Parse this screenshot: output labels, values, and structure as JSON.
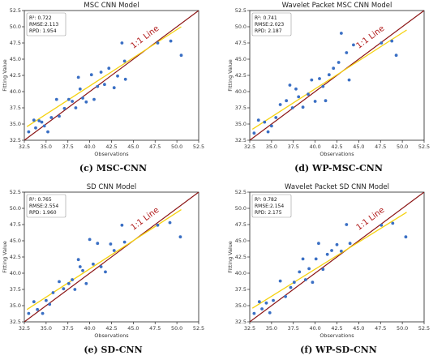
{
  "colors": {
    "point": "#3a6fc4",
    "one_to_one": "#8b1414",
    "fit": "#f5d210",
    "one_to_one_label": "#b01818"
  },
  "chart_data": [
    {
      "type": "scatter",
      "title": "MSC CNN Model",
      "caption": "(c) MSC-CNN",
      "xlabel": "Observations",
      "ylabel": "Fitting Value",
      "xlim": [
        32.5,
        52.5
      ],
      "ylim": [
        32.5,
        52.5
      ],
      "xticks": [
        "32.5",
        "35.0",
        "37.5",
        "40.0",
        "42.5",
        "45.0",
        "47.5",
        "50.0",
        "52.5"
      ],
      "yticks": [
        "32.5",
        "35.0",
        "37.5",
        "40.0",
        "42.5",
        "45.0",
        "47.5",
        "50.0",
        "52.5"
      ],
      "stats": [
        "R²: 0.722",
        "RMSE:2.113",
        "RPD: 1.954"
      ],
      "line_label": "1:1 Line",
      "fit_line": [
        [
          32.8,
          34.6
        ],
        [
          50.5,
          50.0
        ]
      ],
      "points": [
        [
          33.0,
          33.8
        ],
        [
          33.6,
          35.6
        ],
        [
          33.8,
          34.4
        ],
        [
          34.2,
          35.5
        ],
        [
          34.5,
          35.3
        ],
        [
          34.8,
          34.7
        ],
        [
          35.2,
          33.8
        ],
        [
          35.6,
          36.0
        ],
        [
          36.2,
          38.8
        ],
        [
          36.5,
          36.2
        ],
        [
          37.1,
          37.4
        ],
        [
          37.6,
          38.8
        ],
        [
          38.0,
          38.5
        ],
        [
          38.4,
          37.5
        ],
        [
          38.7,
          42.2
        ],
        [
          38.9,
          40.4
        ],
        [
          39.2,
          39.0
        ],
        [
          39.6,
          38.4
        ],
        [
          40.2,
          42.6
        ],
        [
          40.5,
          38.8
        ],
        [
          40.9,
          40.8
        ],
        [
          41.3,
          43.0
        ],
        [
          41.7,
          41.1
        ],
        [
          42.2,
          43.6
        ],
        [
          42.8,
          40.6
        ],
        [
          43.2,
          42.4
        ],
        [
          43.7,
          47.5
        ],
        [
          44.0,
          44.7
        ],
        [
          44.1,
          41.9
        ],
        [
          47.8,
          47.5
        ],
        [
          49.3,
          47.8
        ],
        [
          50.5,
          45.6
        ]
      ]
    },
    {
      "type": "scatter",
      "title": "Wavelet Packet MSC CNN Model",
      "caption": "(d) WP-MSC-CNN",
      "xlabel": "Observations",
      "ylabel": "Fitting Value",
      "xlim": [
        32.5,
        52.5
      ],
      "ylim": [
        32.5,
        52.5
      ],
      "xticks": [
        "32.5",
        "35.0",
        "37.5",
        "40.0",
        "42.5",
        "45.0",
        "47.5",
        "50.0",
        "52.5"
      ],
      "yticks": [
        "32.5",
        "35.0",
        "37.5",
        "40.0",
        "42.5",
        "45.0",
        "47.5",
        "50.0",
        "52.5"
      ],
      "stats": [
        "R²: 0.741",
        "RMSE:2.023",
        "RPD: 2.187"
      ],
      "line_label": "1:1 Line",
      "fit_line": [
        [
          32.8,
          34.2
        ],
        [
          50.5,
          49.5
        ]
      ],
      "points": [
        [
          33.0,
          33.6
        ],
        [
          33.5,
          35.6
        ],
        [
          34.2,
          35.3
        ],
        [
          34.6,
          33.8
        ],
        [
          35.0,
          34.7
        ],
        [
          35.5,
          36.0
        ],
        [
          36.0,
          38.0
        ],
        [
          36.7,
          38.6
        ],
        [
          37.1,
          41.0
        ],
        [
          37.4,
          37.5
        ],
        [
          37.8,
          40.4
        ],
        [
          38.1,
          39.2
        ],
        [
          38.6,
          37.6
        ],
        [
          39.2,
          39.6
        ],
        [
          39.6,
          41.8
        ],
        [
          40.0,
          38.5
        ],
        [
          40.5,
          42.0
        ],
        [
          40.9,
          40.8
        ],
        [
          41.2,
          38.6
        ],
        [
          41.6,
          42.6
        ],
        [
          42.1,
          43.6
        ],
        [
          42.7,
          44.5
        ],
        [
          43.0,
          49.0
        ],
        [
          43.6,
          46.0
        ],
        [
          43.9,
          41.8
        ],
        [
          44.4,
          47.2
        ],
        [
          47.6,
          47.5
        ],
        [
          48.8,
          47.8
        ],
        [
          49.3,
          45.6
        ]
      ]
    },
    {
      "type": "scatter",
      "title": "SD CNN Model",
      "caption": "(e) SD-CNN",
      "xlabel": "Observations",
      "ylabel": "Fitting Value",
      "xlim": [
        32.5,
        52.5
      ],
      "ylim": [
        32.5,
        52.5
      ],
      "xticks": [
        "32.5",
        "35.0",
        "37.5",
        "40.0",
        "42.5",
        "45.0",
        "47.5",
        "50.0",
        "52.5"
      ],
      "yticks": [
        "32.5",
        "35.0",
        "37.5",
        "40.0",
        "42.5",
        "45.0",
        "47.5",
        "50.0",
        "52.5"
      ],
      "stats": [
        "R²: 0.765",
        "RMSE:2.554",
        "RPD: 1.960"
      ],
      "line_label": "1:1 Line",
      "fit_line": [
        [
          32.8,
          34.4
        ],
        [
          50.5,
          49.8
        ]
      ],
      "points": [
        [
          33.0,
          33.8
        ],
        [
          33.6,
          35.6
        ],
        [
          34.0,
          34.4
        ],
        [
          34.6,
          33.8
        ],
        [
          35.0,
          35.8
        ],
        [
          35.4,
          35.2
        ],
        [
          35.8,
          37.0
        ],
        [
          36.5,
          38.7
        ],
        [
          37.0,
          37.6
        ],
        [
          37.6,
          38.4
        ],
        [
          38.0,
          39.0
        ],
        [
          38.3,
          37.5
        ],
        [
          38.7,
          42.1
        ],
        [
          38.9,
          41.0
        ],
        [
          39.2,
          40.4
        ],
        [
          39.6,
          38.4
        ],
        [
          40.0,
          45.2
        ],
        [
          40.4,
          41.4
        ],
        [
          40.9,
          44.6
        ],
        [
          41.3,
          41.0
        ],
        [
          41.8,
          40.2
        ],
        [
          42.4,
          44.5
        ],
        [
          42.8,
          43.5
        ],
        [
          43.7,
          47.4
        ],
        [
          44.0,
          44.8
        ],
        [
          47.8,
          47.4
        ],
        [
          49.2,
          47.8
        ],
        [
          50.4,
          45.6
        ]
      ]
    },
    {
      "type": "scatter",
      "title": "Wavelet Packet SD CNN Model",
      "caption": "(f) WP-SD-CNN",
      "xlabel": "Observations",
      "ylabel": "Fitting Value",
      "xlim": [
        32.5,
        52.5
      ],
      "ylim": [
        32.5,
        52.5
      ],
      "xticks": [
        "32.5",
        "35.0",
        "37.5",
        "40.0",
        "42.5",
        "45.0",
        "47.5",
        "50.0",
        "52.5"
      ],
      "yticks": [
        "32.5",
        "35.0",
        "37.5",
        "40.0",
        "42.5",
        "45.0",
        "47.5",
        "50.0",
        "52.5"
      ],
      "stats": [
        "R²: 0.782",
        "RMSE:2.154",
        "RPD: 2.175"
      ],
      "line_label": "1:1 Line",
      "fit_line": [
        [
          32.8,
          34.6
        ],
        [
          50.5,
          49.4
        ]
      ],
      "points": [
        [
          33.0,
          33.8
        ],
        [
          33.6,
          35.6
        ],
        [
          33.9,
          34.5
        ],
        [
          34.4,
          35.4
        ],
        [
          34.8,
          33.9
        ],
        [
          35.2,
          35.8
        ],
        [
          36.0,
          38.8
        ],
        [
          36.6,
          36.4
        ],
        [
          37.2,
          37.8
        ],
        [
          37.6,
          38.6
        ],
        [
          38.2,
          40.2
        ],
        [
          38.6,
          42.2
        ],
        [
          38.9,
          39.0
        ],
        [
          39.3,
          40.7
        ],
        [
          39.7,
          38.6
        ],
        [
          40.1,
          42.2
        ],
        [
          40.4,
          44.6
        ],
        [
          40.9,
          40.6
        ],
        [
          41.4,
          42.9
        ],
        [
          41.9,
          43.5
        ],
        [
          42.5,
          44.4
        ],
        [
          43.0,
          43.4
        ],
        [
          43.6,
          47.5
        ],
        [
          44.0,
          44.6
        ],
        [
          47.6,
          47.4
        ],
        [
          48.9,
          47.7
        ],
        [
          50.4,
          45.6
        ]
      ]
    }
  ]
}
